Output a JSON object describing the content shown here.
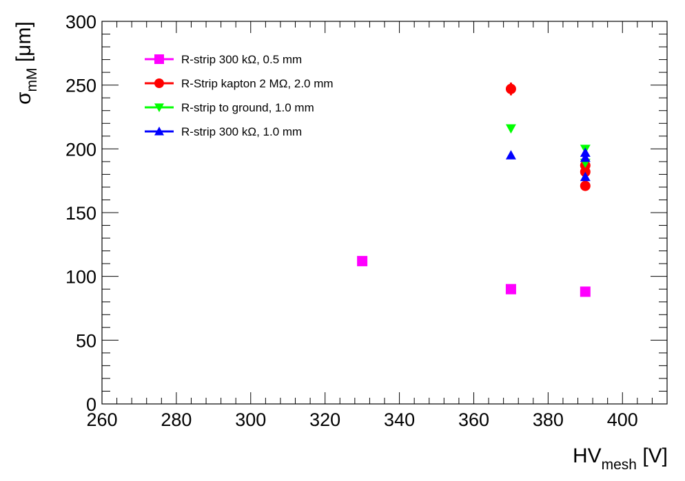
{
  "chart_data": {
    "type": "scatter",
    "title": "",
    "xlabel": {
      "main": "HV",
      "sub": "mesh",
      "unit": " [V]"
    },
    "ylabel": {
      "main": "σ",
      "sub": "mM",
      "unit": " [μm]"
    },
    "xlim": [
      260,
      412
    ],
    "ylim": [
      0,
      300
    ],
    "x_ticks": [
      260,
      280,
      300,
      320,
      340,
      360,
      380,
      400
    ],
    "y_ticks": [
      0,
      50,
      100,
      150,
      200,
      250,
      300
    ],
    "x_tick_labels": [
      "260",
      "280",
      "300",
      "320",
      "340",
      "360",
      "380",
      "400"
    ],
    "y_tick_labels": [
      "0",
      "50",
      "100",
      "150",
      "200",
      "250",
      "300"
    ],
    "legend_position": "top-left",
    "series": [
      {
        "name": "R-strip 300 kΩ, 0.5 mm",
        "color": "#ff00ff",
        "marker": "square",
        "points": [
          {
            "x": 330,
            "y": 112
          },
          {
            "x": 370,
            "y": 90
          },
          {
            "x": 390,
            "y": 88
          }
        ]
      },
      {
        "name": "R-Strip kapton 2 MΩ, 2.0 mm",
        "color": "#ff0000",
        "marker": "circle",
        "points": [
          {
            "x": 370,
            "y": 247,
            "err": 5
          },
          {
            "x": 390,
            "y": 187
          },
          {
            "x": 390,
            "y": 182
          },
          {
            "x": 390,
            "y": 171
          }
        ]
      },
      {
        "name": "R-strip to ground, 1.0 mm",
        "color": "#00ff00",
        "marker": "triangle-down",
        "points": [
          {
            "x": 370,
            "y": 216
          },
          {
            "x": 390,
            "y": 200
          },
          {
            "x": 390,
            "y": 189
          }
        ]
      },
      {
        "name": "R-strip 300 kΩ, 1.0 mm",
        "color": "#0000ff",
        "marker": "triangle-up",
        "points": [
          {
            "x": 370,
            "y": 195
          },
          {
            "x": 390,
            "y": 197
          },
          {
            "x": 390,
            "y": 193
          },
          {
            "x": 390,
            "y": 178
          }
        ]
      }
    ]
  }
}
